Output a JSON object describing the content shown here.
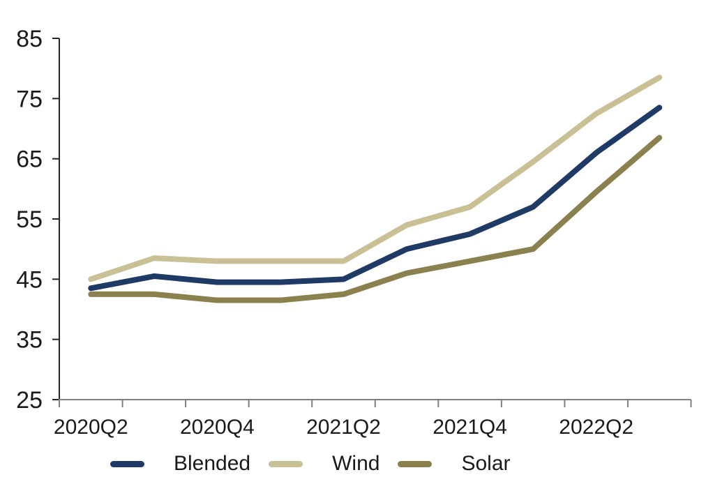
{
  "chart_data": {
    "type": "line",
    "title": "",
    "xlabel": "",
    "ylabel": "",
    "ylim": [
      25,
      85
    ],
    "y_ticks": [
      25,
      35,
      45,
      55,
      65,
      75,
      85
    ],
    "grid": false,
    "legend_position": "bottom",
    "categories": [
      "2020Q2",
      "2020Q3",
      "2020Q4",
      "2021Q1",
      "2021Q2",
      "2021Q3",
      "2021Q4",
      "2022Q1",
      "2022Q2",
      "2022Q3"
    ],
    "x_tick_labels": [
      "2020Q2",
      "2020Q4",
      "2021Q2",
      "2021Q4",
      "2022Q2"
    ],
    "x_tick_label_indices": [
      0,
      2,
      4,
      6,
      8
    ],
    "series": [
      {
        "name": "Blended",
        "color": "#1f3a64",
        "values": [
          43.5,
          45.5,
          44.5,
          44.5,
          45,
          50,
          52.5,
          57,
          66,
          73.5
        ]
      },
      {
        "name": "Wind",
        "color": "#c9c095",
        "values": [
          45,
          48.5,
          48,
          48,
          48,
          54,
          57,
          64.5,
          72.5,
          78.5
        ]
      },
      {
        "name": "Solar",
        "color": "#8b814e",
        "values": [
          42.5,
          42.5,
          41.5,
          41.5,
          42.5,
          46,
          48,
          50,
          59.5,
          68.5
        ]
      }
    ],
    "colors": {
      "axis_left": "#262626",
      "axis_bottom": "#7f7f7f",
      "text": "#1a1a1a"
    }
  }
}
